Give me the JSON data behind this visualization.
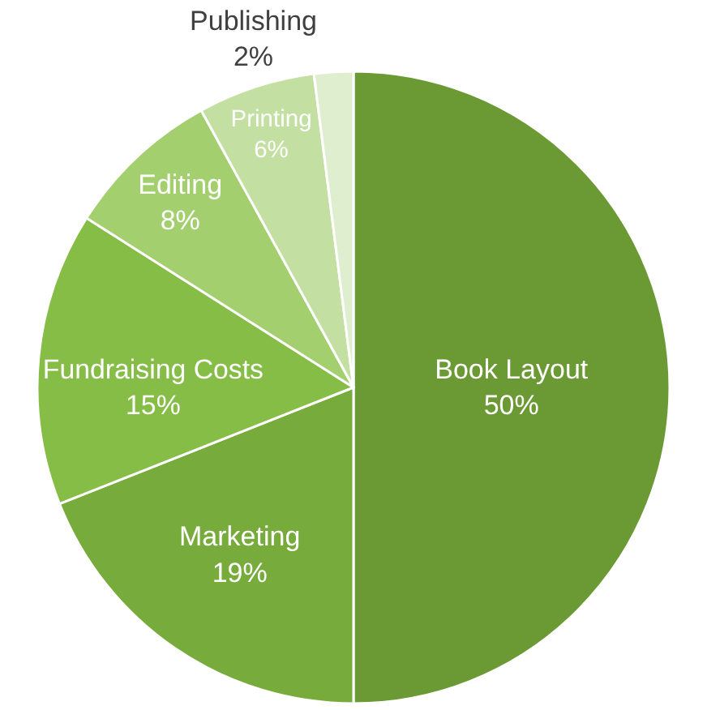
{
  "chart_data": {
    "type": "pie",
    "categories": [
      "Book Layout",
      "Marketing",
      "Fundraising Costs",
      "Editing",
      "Printing",
      "Publishing"
    ],
    "values": [
      50,
      19,
      15,
      8,
      6,
      2
    ],
    "value_labels": [
      "50%",
      "19%",
      "15%",
      "8%",
      "6%",
      "2%"
    ],
    "colors": [
      "#6b9a34",
      "#77ab3c",
      "#86bd47",
      "#a3cf6e",
      "#c3e0a2",
      "#e0eed0"
    ],
    "legend": false
  }
}
